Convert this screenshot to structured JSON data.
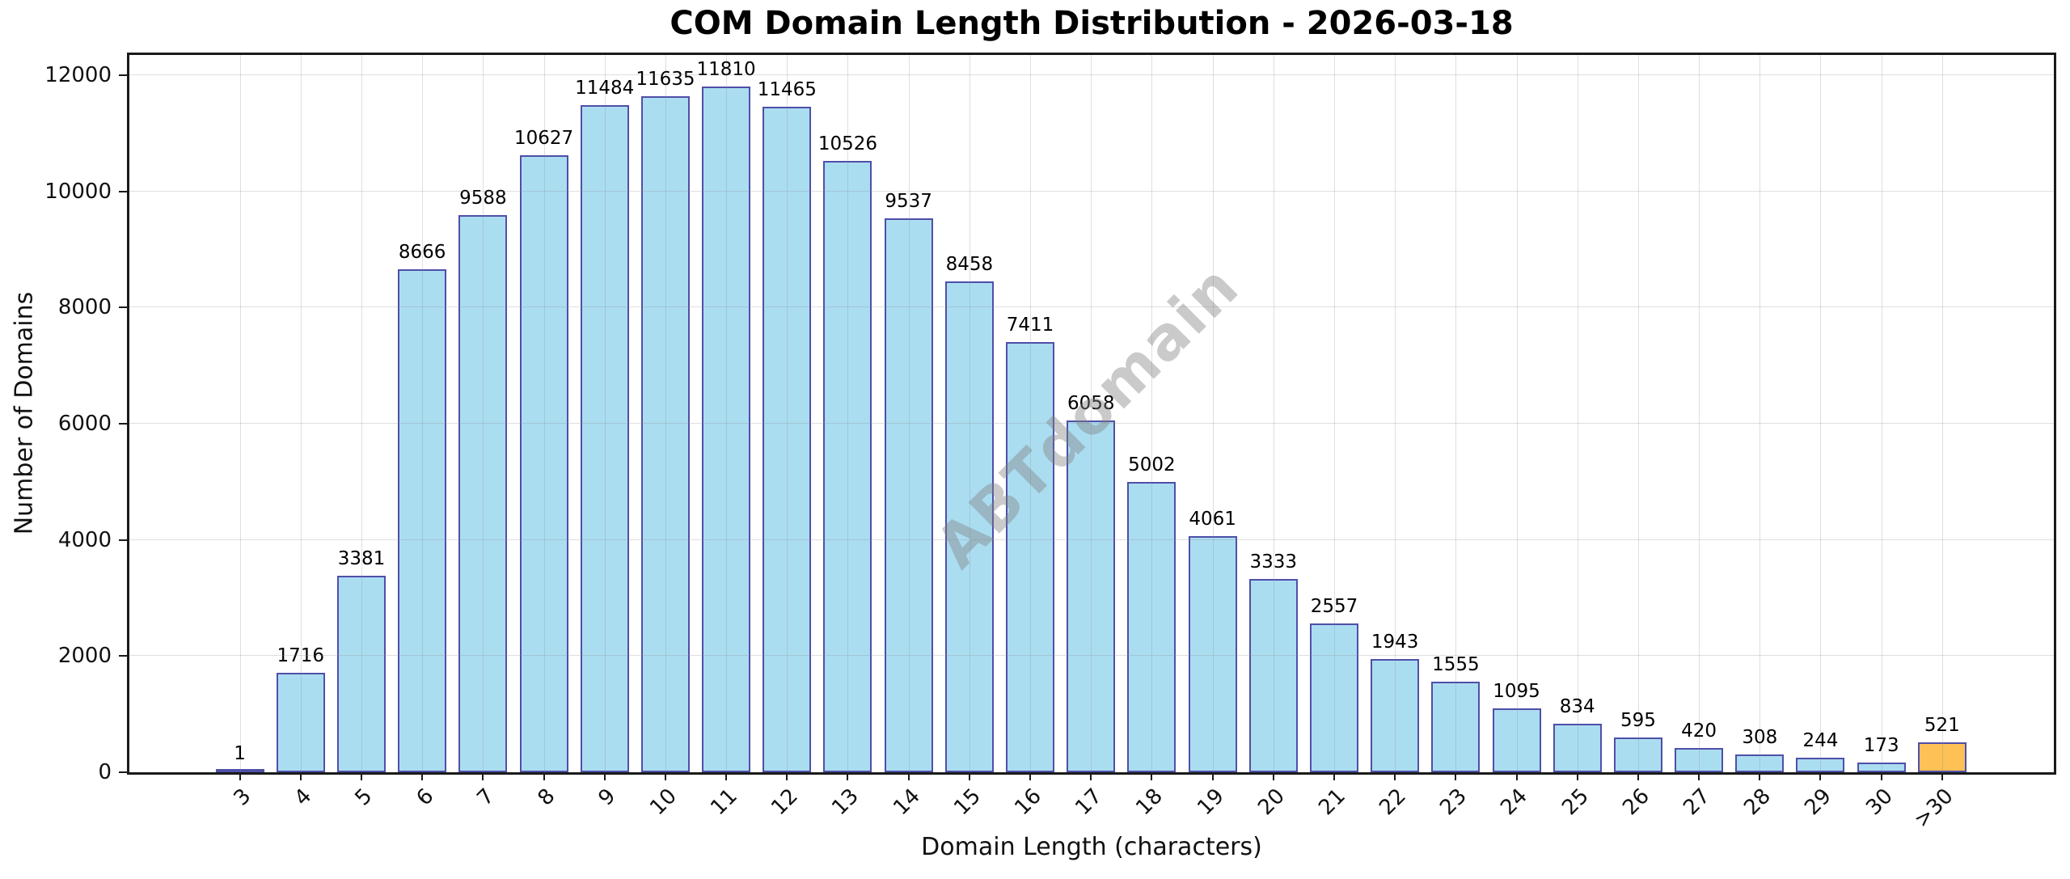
{
  "chart_data": {
    "type": "bar",
    "title": "COM Domain Length Distribution - 2026-03-18",
    "xlabel": "Domain Length (characters)",
    "ylabel": "Number of Domains",
    "categories": [
      "3",
      "4",
      "5",
      "6",
      "7",
      "8",
      "9",
      "10",
      "11",
      "12",
      "13",
      "14",
      "15",
      "16",
      "17",
      "18",
      "19",
      "20",
      "21",
      "22",
      "23",
      "24",
      "25",
      "26",
      "27",
      "28",
      "29",
      "30",
      ">30"
    ],
    "values": [
      1,
      1716,
      3381,
      8666,
      9588,
      10627,
      11484,
      11635,
      11810,
      11465,
      10526,
      9537,
      8458,
      7411,
      6058,
      5002,
      4061,
      3333,
      2557,
      1943,
      1555,
      1095,
      834,
      595,
      420,
      308,
      244,
      173,
      521
    ],
    "yticks": [
      0,
      2000,
      4000,
      6000,
      8000,
      10000,
      12000
    ],
    "ylim": [
      0,
      12350
    ],
    "grid": true,
    "legend": "none",
    "bar_fill_color": "#abddf1",
    "bar_edge_color": "#4f4fa8",
    "highlight_index": 28,
    "highlight_fill_color": "#fdc155",
    "watermark_text": "ABTdomain"
  }
}
